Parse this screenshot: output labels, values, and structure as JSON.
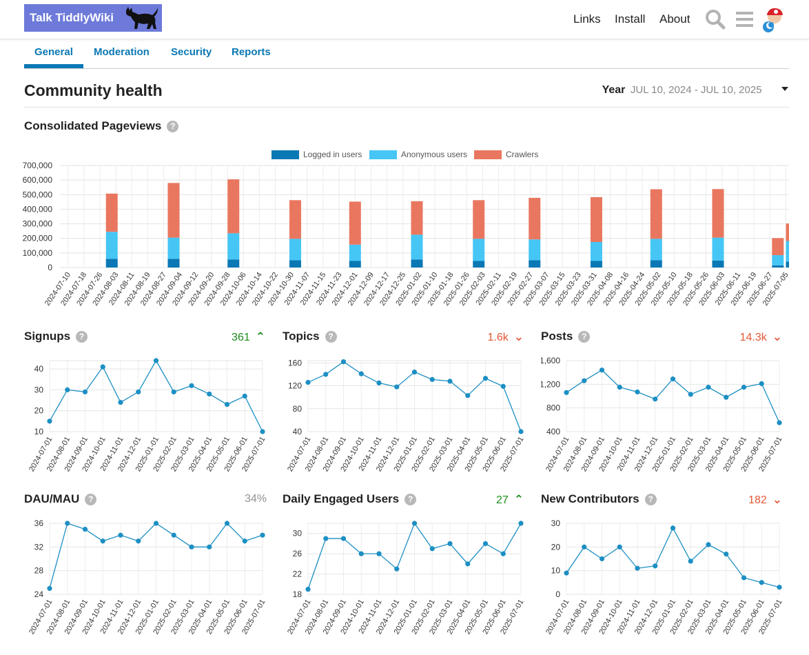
{
  "header": {
    "logo_text": "Talk TiddlyWiki",
    "nav": [
      "Links",
      "Install",
      "About"
    ],
    "icons": [
      "search-icon",
      "hamburger-menu-icon",
      "user-avatar"
    ]
  },
  "tabs": [
    "General",
    "Moderation",
    "Security",
    "Reports"
  ],
  "page_title": "Community health",
  "period": {
    "label": "Year",
    "range": "JUL 10, 2024 - JUL 10, 2025"
  },
  "colors": {
    "logged_in": "#0a78b4",
    "anonymous": "#45c6f5",
    "crawlers": "#e9775f",
    "line": "#1c8fc3",
    "accent_up": "#1a8c1a",
    "accent_down": "#e45735"
  },
  "pageviews": {
    "title": "Consolidated Pageviews",
    "chart_data": {
      "type": "bar",
      "stacked": true,
      "legend": [
        "Logged in users",
        "Anonymous users",
        "Crawlers"
      ],
      "ylim": [
        0,
        700000
      ],
      "yticks": [
        "700,000",
        "600,000",
        "500,000",
        "400,000",
        "300,000",
        "200,000",
        "100,000",
        "0"
      ],
      "categories": [
        "2024-07-10",
        "2024-07-18",
        "2024-07-26",
        "2024-08-03",
        "2024-08-11",
        "2024-08-19",
        "2024-08-27",
        "2024-09-04",
        "2024-09-12",
        "2024-09-20",
        "2024-09-28",
        "2024-10-06",
        "2024-10-14",
        "2024-10-22",
        "2024-10-30",
        "2024-11-07",
        "2024-11-15",
        "2024-11-23",
        "2024-12-01",
        "2024-12-09",
        "2024-12-17",
        "2024-12-25",
        "2025-01-02",
        "2025-01-10",
        "2025-01-18",
        "2025-01-26",
        "2025-02-03",
        "2025-02-11",
        "2025-02-19",
        "2025-02-27",
        "2025-03-07",
        "2025-03-15",
        "2025-03-23",
        "2025-03-31",
        "2025-04-08",
        "2025-04-16",
        "2025-04-24",
        "2025-05-02",
        "2025-05-10",
        "2025-05-18",
        "2025-05-26",
        "2025-06-03",
        "2025-06-11",
        "2025-06-19",
        "2025-06-27",
        "2025-07-05"
      ],
      "bars": [
        {
          "x": "2024-08-01",
          "logged": 60000,
          "anonymous": 185000,
          "crawlers": 262000
        },
        {
          "x": "2024-09-01",
          "logged": 60000,
          "anonymous": 145000,
          "crawlers": 375000
        },
        {
          "x": "2024-10-01",
          "logged": 55000,
          "anonymous": 180000,
          "crawlers": 370000
        },
        {
          "x": "2024-11-01",
          "logged": 50000,
          "anonymous": 147000,
          "crawlers": 265000
        },
        {
          "x": "2024-12-01",
          "logged": 45000,
          "anonymous": 112000,
          "crawlers": 295000
        },
        {
          "x": "2025-01-01",
          "logged": 55000,
          "anonymous": 170000,
          "crawlers": 230000
        },
        {
          "x": "2025-02-01",
          "logged": 45000,
          "anonymous": 152000,
          "crawlers": 265000
        },
        {
          "x": "2025-03-01",
          "logged": 50000,
          "anonymous": 143000,
          "crawlers": 285000
        },
        {
          "x": "2025-04-01",
          "logged": 45000,
          "anonymous": 130000,
          "crawlers": 308000
        },
        {
          "x": "2025-05-01",
          "logged": 50000,
          "anonymous": 147000,
          "crawlers": 340000
        },
        {
          "x": "2025-06-01",
          "logged": 48000,
          "anonymous": 157000,
          "crawlers": 333000
        },
        {
          "x": "2025-07-01",
          "logged": 15000,
          "anonymous": 70000,
          "crawlers": 117000
        },
        {
          "x": "2025-07-08",
          "logged": 40000,
          "anonymous": 142000,
          "crawlers": 120000
        }
      ]
    }
  },
  "mini_x": [
    "2024-07-01",
    "2024-08-01",
    "2024-09-01",
    "2024-10-01",
    "2024-11-01",
    "2024-12-01",
    "2025-01-01",
    "2025-02-01",
    "2025-03-01",
    "2025-04-01",
    "2025-05-01",
    "2025-06-01",
    "2025-07-01"
  ],
  "metrics": [
    {
      "title": "Signups",
      "value": "361",
      "trend": "up",
      "chart_data": {
        "type": "line",
        "ylim": [
          10,
          44
        ],
        "yticks": [
          40,
          30,
          20,
          10
        ],
        "ytick_labels": [
          "40",
          "30",
          "20",
          "10"
        ],
        "values": [
          15,
          30,
          29,
          41,
          24,
          29,
          44,
          29,
          32,
          28,
          23,
          27,
          10
        ]
      }
    },
    {
      "title": "Topics",
      "value": "1.6k",
      "trend": "down",
      "chart_data": {
        "type": "line",
        "ylim": [
          40,
          164
        ],
        "yticks": [
          160,
          120,
          80,
          40
        ],
        "ytick_labels": [
          "160",
          "120",
          "80",
          "40"
        ],
        "values": [
          126,
          140,
          162,
          141,
          125,
          118,
          144,
          131,
          128,
          103,
          133,
          119,
          40
        ]
      }
    },
    {
      "title": "Posts",
      "value": "14.3k",
      "trend": "down",
      "chart_data": {
        "type": "line",
        "ylim": [
          400,
          1600
        ],
        "yticks": [
          1600,
          1200,
          800,
          400
        ],
        "ytick_labels": [
          "1,600",
          "1,200",
          "800",
          "400"
        ],
        "values": [
          1060,
          1260,
          1440,
          1150,
          1070,
          950,
          1290,
          1030,
          1150,
          980,
          1150,
          1210,
          550
        ]
      }
    },
    {
      "title": "DAU/MAU",
      "value": "34%",
      "trend": "none",
      "chart_data": {
        "type": "line",
        "ylim": [
          24,
          36
        ],
        "yticks": [
          36,
          32,
          28,
          24
        ],
        "ytick_labels": [
          "36",
          "32",
          "28",
          "24"
        ],
        "values": [
          25,
          36,
          35,
          33,
          34,
          33,
          36,
          34,
          32,
          32,
          36,
          33,
          34
        ]
      }
    },
    {
      "title": "Daily Engaged Users",
      "value": "27",
      "trend": "up",
      "chart_data": {
        "type": "line",
        "ylim": [
          18,
          32
        ],
        "yticks": [
          30,
          26,
          22,
          18
        ],
        "ytick_labels": [
          "30",
          "26",
          "22",
          "18"
        ],
        "values": [
          19,
          29,
          29,
          26,
          26,
          23,
          32,
          27,
          28,
          24,
          28,
          26,
          32
        ]
      }
    },
    {
      "title": "New Contributors",
      "value": "182",
      "trend": "down",
      "chart_data": {
        "type": "line",
        "ylim": [
          0,
          30
        ],
        "yticks": [
          30,
          20,
          10,
          0
        ],
        "ytick_labels": [
          "30",
          "20",
          "10",
          "0"
        ],
        "values": [
          9,
          20,
          15,
          20,
          11,
          12,
          28,
          14,
          21,
          17,
          7,
          5,
          3
        ]
      }
    }
  ]
}
